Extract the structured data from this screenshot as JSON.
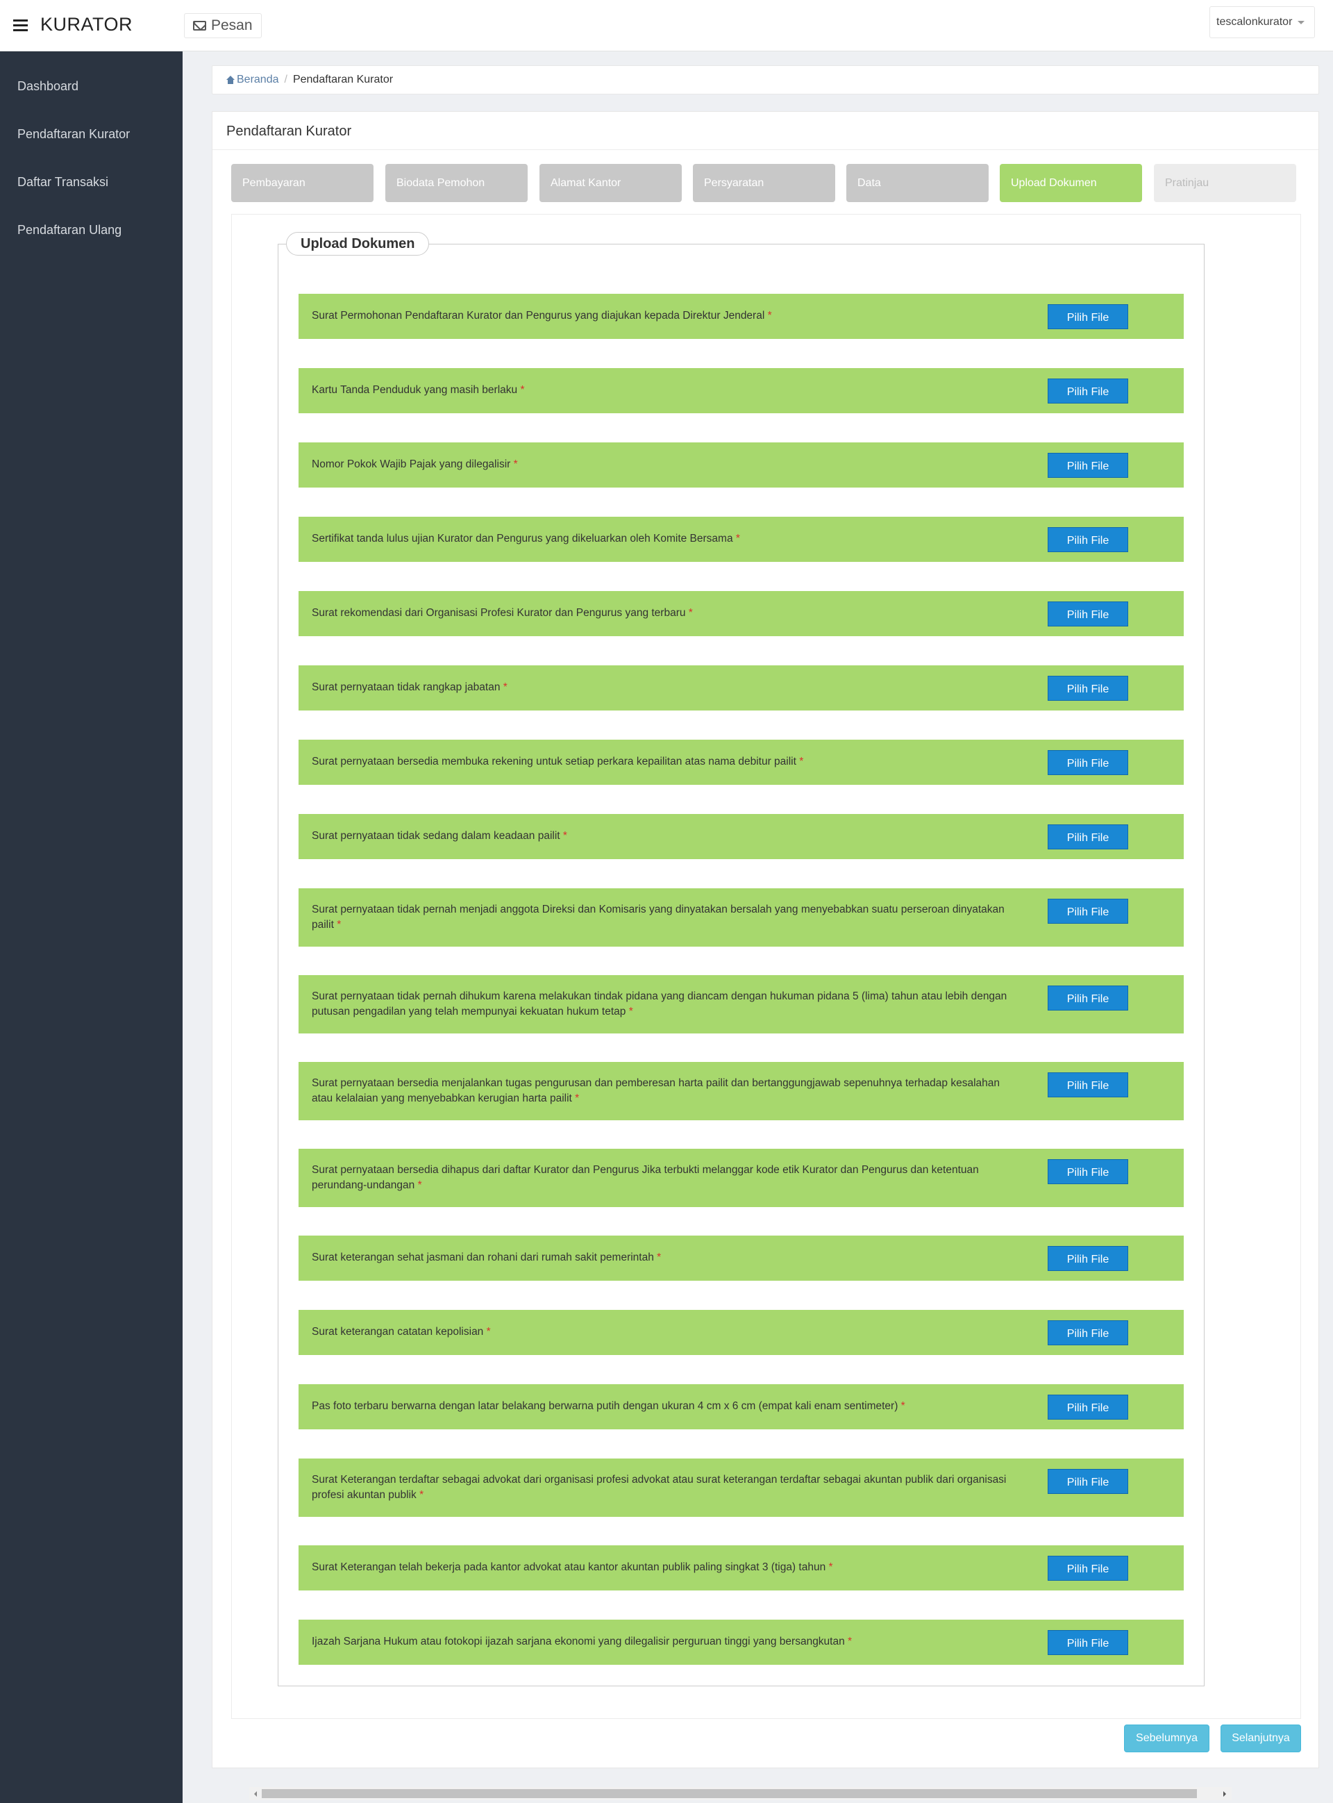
{
  "app": {
    "brand": "KURATOR",
    "messages_label": "Pesan",
    "user": "tescalonkurator"
  },
  "sidebar": {
    "items": [
      "Dashboard",
      "Pendaftaran Kurator",
      "Daftar Transaksi",
      "Pendaftaran Ulang"
    ]
  },
  "breadcrumb": {
    "home": "Beranda",
    "current": "Pendaftaran Kurator"
  },
  "page": {
    "title": "Pendaftaran Kurator"
  },
  "steps": [
    "Pembayaran",
    "Biodata Pemohon",
    "Alamat Kantor",
    "Persyaratan",
    "Data",
    "Upload Dokumen",
    "Pratinjau"
  ],
  "active_step": "Upload Dokumen",
  "upload": {
    "legend": "Upload Dokumen",
    "button_label": "Pilih File",
    "required_mark": "*",
    "documents": [
      "Surat Permohonan Pendaftaran Kurator dan Pengurus yang diajukan kepada Direktur Jenderal",
      "Kartu Tanda Penduduk yang masih berlaku",
      "Nomor Pokok Wajib Pajak yang dilegalisir",
      "Sertifikat tanda lulus ujian Kurator dan Pengurus yang dikeluarkan oleh Komite Bersama",
      "Surat rekomendasi dari Organisasi Profesi Kurator dan Pengurus yang terbaru",
      "Surat pernyataan tidak rangkap jabatan",
      "Surat pernyataan bersedia membuka rekening untuk setiap perkara kepailitan atas nama debitur pailit",
      "Surat pernyataan tidak sedang dalam keadaan pailit",
      "Surat pernyataan tidak pernah menjadi anggota Direksi dan Komisaris yang dinyatakan bersalah yang menyebabkan suatu perseroan dinyatakan pailit",
      "Surat pernyataan tidak pernah dihukum karena melakukan tindak pidana yang diancam dengan hukuman pidana 5 (lima) tahun atau lebih dengan putusan pengadilan yang telah mempunyai kekuatan hukum tetap",
      "Surat pernyataan bersedia menjalankan tugas pengurusan dan pemberesan harta pailit dan bertanggungjawab sepenuhnya terhadap kesalahan atau kelalaian yang menyebabkan kerugian harta pailit",
      "Surat pernyataan bersedia dihapus dari daftar Kurator dan Pengurus Jika terbukti melanggar kode etik Kurator dan Pengurus dan ketentuan perundang-undangan",
      "Surat keterangan sehat jasmani dan rohani dari rumah sakit pemerintah",
      "Surat keterangan catatan kepolisian",
      "Pas foto terbaru berwarna dengan latar belakang berwarna putih dengan ukuran 4 cm x 6 cm (empat kali enam sentimeter)",
      "Surat Keterangan terdaftar sebagai advokat dari organisasi profesi advokat atau surat keterangan terdaftar sebagai akuntan publik dari organisasi profesi akuntan publik",
      "Surat Keterangan telah bekerja pada kantor advokat atau kantor akuntan publik paling singkat 3 (tiga) tahun",
      "Ijazah Sarjana Hukum atau fotokopi ijazah sarjana ekonomi yang dilegalisir perguruan tinggi yang bersangkutan"
    ]
  },
  "buttons": {
    "prev": "Sebelumnya",
    "next": "Selanjutnya"
  },
  "colors": {
    "sidebar": "#2b3441",
    "row_green": "#a7d86d",
    "file_button": "#1a88d4",
    "nav_button": "#5bc0de",
    "required": "#d9302c"
  }
}
